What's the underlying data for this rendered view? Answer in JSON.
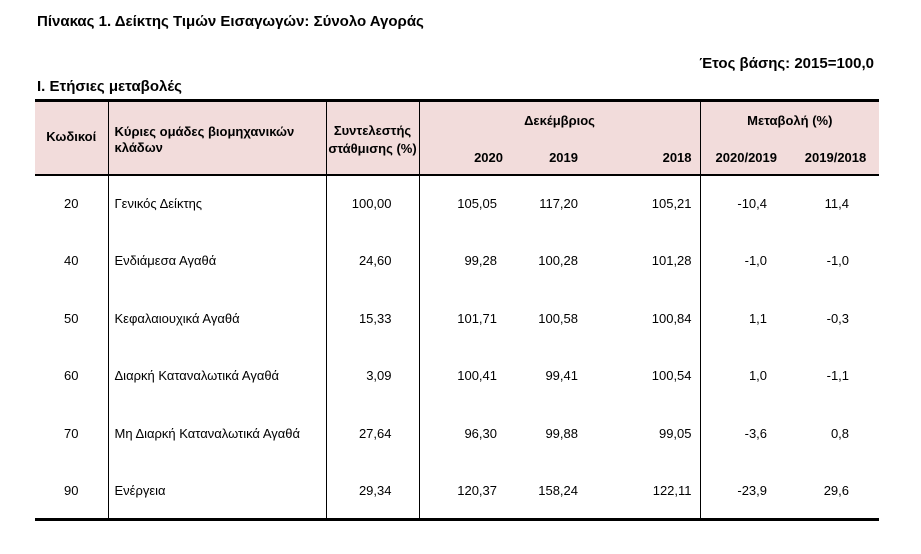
{
  "title": "Πίνακας 1. Δείκτης Τιμών Εισαγωγών: Σύνολο Αγοράς",
  "base_year": "Έτος βάσης: 2015=100,0",
  "section": "Ι. Ετήσιες μεταβολές",
  "headers": {
    "codes": "Κωδικοί",
    "groups": "Κύριες ομάδες βιομηχανικών κλάδων",
    "weight_line1": "Συντελεστής",
    "weight_line2": "στάθμισης (%)",
    "december": "Δεκέμβριος",
    "change": "Μεταβολή (%)",
    "y2020": "2020",
    "y2019": "2019",
    "y2018": "2018",
    "c2020_2019": "2020/2019",
    "c2019_2018": "2019/2018"
  },
  "rows": [
    {
      "code": "20",
      "name": "Γενικός Δείκτης",
      "weight": "100,00",
      "v2020": "105,05",
      "v2019": "117,20",
      "v2018": "105,21",
      "ch1": "-10,4",
      "ch2": "11,4"
    },
    {
      "code": "40",
      "name": "Ενδιάμεσα Αγαθά",
      "weight": "24,60",
      "v2020": "99,28",
      "v2019": "100,28",
      "v2018": "101,28",
      "ch1": "-1,0",
      "ch2": "-1,0"
    },
    {
      "code": "50",
      "name": "Κεφαλαιουχικά Αγαθά",
      "weight": "15,33",
      "v2020": "101,71",
      "v2019": "100,58",
      "v2018": "100,84",
      "ch1": "1,1",
      "ch2": "-0,3"
    },
    {
      "code": "60",
      "name": "Διαρκή Καταναλωτικά Αγαθά",
      "weight": "3,09",
      "v2020": "100,41",
      "v2019": "99,41",
      "v2018": "100,54",
      "ch1": "1,0",
      "ch2": "-1,1"
    },
    {
      "code": "70",
      "name": "Μη Διαρκή Καταναλωτικά Αγαθά",
      "weight": "27,64",
      "v2020": "96,30",
      "v2019": "99,88",
      "v2018": "99,05",
      "ch1": "-3,6",
      "ch2": "0,8"
    },
    {
      "code": "90",
      "name": "Ενέργεια",
      "weight": "29,34",
      "v2020": "120,37",
      "v2019": "158,24",
      "v2018": "122,11",
      "ch1": "-23,9",
      "ch2": "29,6"
    }
  ],
  "colors": {
    "header_background": "#f2dcdb",
    "rules": "#000000"
  }
}
